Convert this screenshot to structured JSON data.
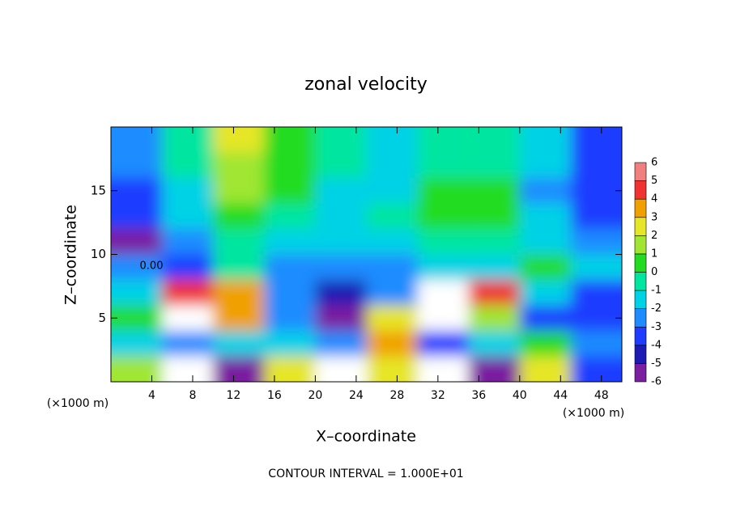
{
  "chart_data": {
    "type": "heatmap",
    "title": "zonal velocity",
    "x_label": "X–coordinate",
    "y_label": "Z–coordinate",
    "x_unit_labels": [
      "(×1000 m)",
      "(×1000 m)"
    ],
    "contour_label": "0.00",
    "footer": "CONTOUR INTERVAL = 1.000E+01",
    "x": [
      2.5,
      7.5,
      12.5,
      17.5,
      22.5,
      27.5,
      32.5,
      37.5,
      42.5,
      47.5
    ],
    "y": [
      1,
      3,
      5,
      7,
      9,
      11,
      13,
      15,
      17,
      19
    ],
    "z": [
      [
        2,
        -7,
        -5,
        3,
        -7,
        3,
        7,
        -5,
        3,
        -3
      ],
      [
        -1,
        -2,
        -1,
        -1,
        -2,
        4,
        -3,
        -1,
        1,
        -2
      ],
      [
        1,
        7,
        4,
        -2,
        -5,
        3,
        -7,
        2,
        -3,
        -3
      ],
      [
        -1,
        5,
        4,
        -2,
        -4,
        -2,
        -7,
        5,
        -1,
        -3
      ],
      [
        -2,
        -3,
        0,
        -2,
        -2.5,
        -2,
        -1.5,
        -1.5,
        0.5,
        -1.5
      ],
      [
        -5,
        -2,
        -0.5,
        -1,
        -1.5,
        -1,
        0,
        0,
        -1,
        -2
      ],
      [
        -3,
        -1.5,
        1,
        0,
        -1.5,
        -0.5,
        0.5,
        0.5,
        -1.5,
        -3
      ],
      [
        -3,
        -1,
        1.5,
        0.5,
        -1,
        -1,
        0.5,
        0.5,
        -2,
        -3.5
      ],
      [
        -2.5,
        0,
        2,
        0.5,
        -0.5,
        -1,
        0,
        0,
        -1.5,
        -3
      ],
      [
        -2,
        0,
        2.5,
        0.5,
        0,
        -1,
        0,
        0,
        -1.5,
        -3
      ]
    ],
    "xlim": [
      0,
      50
    ],
    "ylim": [
      0,
      20
    ],
    "xticks": [
      4,
      8,
      12,
      16,
      20,
      24,
      28,
      32,
      36,
      40,
      44,
      48
    ],
    "yticks": [
      5,
      10,
      15
    ],
    "colorbar": {
      "ticks": [
        -6,
        -5,
        -4,
        -3,
        -2,
        -1,
        0,
        1,
        2,
        3,
        4,
        5,
        6
      ],
      "colors": [
        "#7a1fa0",
        "#1c1cb4",
        "#1e3cff",
        "#1e8cff",
        "#00d2e6",
        "#00e6a0",
        "#22dc22",
        "#a0e632",
        "#e6e628",
        "#f0a000",
        "#f03232",
        "#f08080"
      ],
      "out_of_range_color": "#ffffff"
    }
  }
}
